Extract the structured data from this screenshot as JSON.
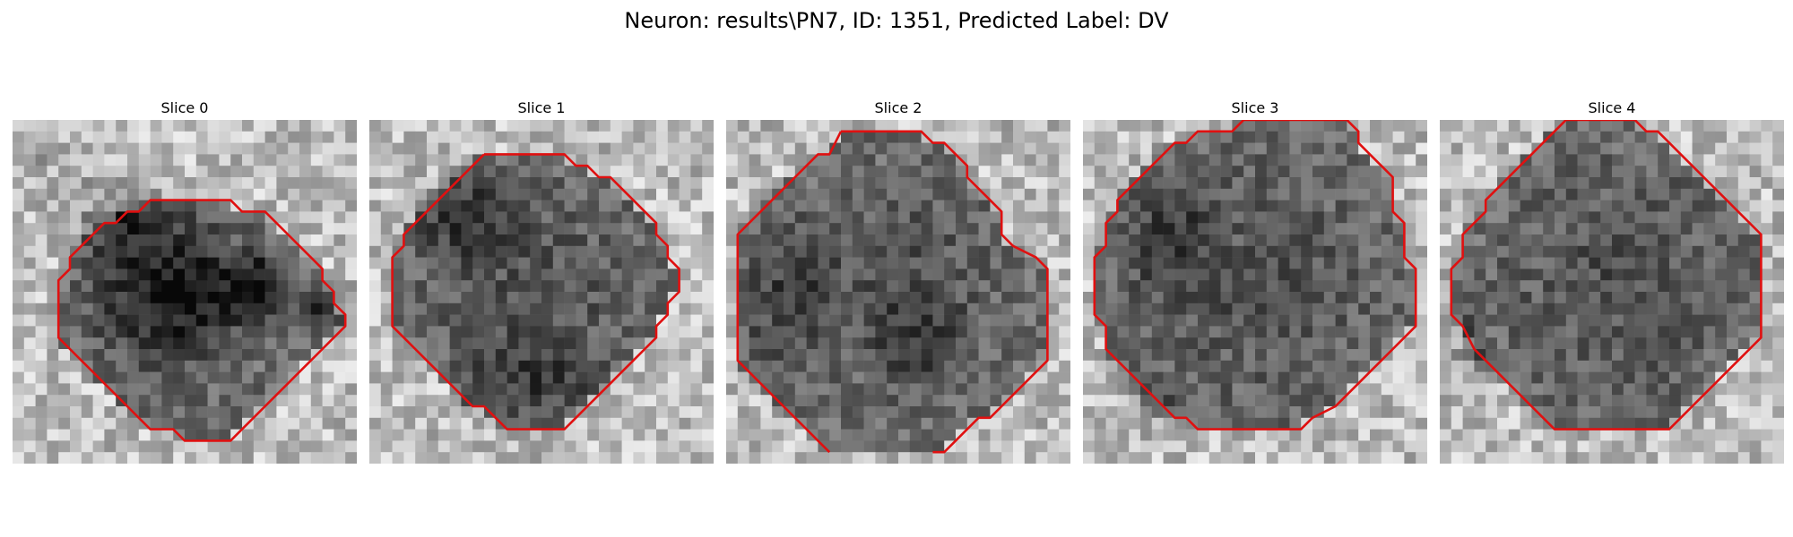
{
  "figure": {
    "title": "Neuron: results\\PN7, ID: 1351, Predicted Label: DV"
  },
  "colors": {
    "contour": "#e01010",
    "background": "#ffffff"
  },
  "slices": [
    {
      "title": "Slice 0",
      "contour": [
        [
          14,
          7
        ],
        [
          19,
          7
        ],
        [
          20,
          8
        ],
        [
          22,
          8
        ],
        [
          23,
          9
        ],
        [
          24,
          10
        ],
        [
          25,
          11
        ],
        [
          26,
          12
        ],
        [
          27,
          13
        ],
        [
          27,
          14
        ],
        [
          28,
          15
        ],
        [
          28,
          16
        ],
        [
          29,
          17
        ],
        [
          29,
          18
        ],
        [
          28,
          19
        ],
        [
          27,
          20
        ],
        [
          26,
          21
        ],
        [
          25,
          22
        ],
        [
          24,
          23
        ],
        [
          23,
          24
        ],
        [
          22,
          25
        ],
        [
          21,
          26
        ],
        [
          20,
          27
        ],
        [
          19,
          28
        ],
        [
          16,
          28
        ],
        [
          15,
          28
        ],
        [
          14,
          27
        ],
        [
          12,
          27
        ],
        [
          11,
          26
        ],
        [
          10,
          25
        ],
        [
          9,
          24
        ],
        [
          8,
          23
        ],
        [
          7,
          22
        ],
        [
          6,
          21
        ],
        [
          5,
          20
        ],
        [
          4,
          19
        ],
        [
          4,
          17
        ],
        [
          4,
          14
        ],
        [
          5,
          13
        ],
        [
          5,
          12
        ],
        [
          6,
          11
        ],
        [
          7,
          10
        ],
        [
          8,
          9
        ],
        [
          9,
          9
        ],
        [
          10,
          8
        ],
        [
          11,
          8
        ],
        [
          12,
          7
        ],
        [
          14,
          7
        ]
      ],
      "dark_spots": [
        [
          9,
          8,
          7,
          5,
          0.25
        ],
        [
          13,
          15,
          9,
          8,
          0.32
        ],
        [
          21,
          14,
          4,
          4,
          0.35
        ],
        [
          27,
          16,
          3,
          3,
          0.3
        ],
        [
          2,
          2,
          2,
          4,
          0.15
        ]
      ],
      "dark_center": [
        15,
        14,
        10,
        8
      ]
    },
    {
      "title": "Slice 1",
      "contour": [
        [
          10,
          3
        ],
        [
          17,
          3
        ],
        [
          18,
          4
        ],
        [
          19,
          4
        ],
        [
          20,
          5
        ],
        [
          21,
          5
        ],
        [
          22,
          6
        ],
        [
          23,
          7
        ],
        [
          24,
          8
        ],
        [
          25,
          9
        ],
        [
          25,
          10
        ],
        [
          26,
          11
        ],
        [
          26,
          12
        ],
        [
          27,
          13
        ],
        [
          27,
          15
        ],
        [
          26,
          16
        ],
        [
          26,
          17
        ],
        [
          25,
          18
        ],
        [
          25,
          19
        ],
        [
          24,
          20
        ],
        [
          23,
          21
        ],
        [
          22,
          22
        ],
        [
          21,
          23
        ],
        [
          20,
          24
        ],
        [
          19,
          25
        ],
        [
          18,
          26
        ],
        [
          17,
          27
        ],
        [
          12,
          27
        ],
        [
          11,
          26
        ],
        [
          10,
          25
        ],
        [
          9,
          25
        ],
        [
          8,
          24
        ],
        [
          7,
          23
        ],
        [
          6,
          22
        ],
        [
          5,
          21
        ],
        [
          4,
          20
        ],
        [
          3,
          19
        ],
        [
          2,
          18
        ],
        [
          2,
          16
        ],
        [
          2,
          12
        ],
        [
          3,
          11
        ],
        [
          3,
          10
        ],
        [
          4,
          9
        ],
        [
          5,
          8
        ],
        [
          6,
          7
        ],
        [
          7,
          6
        ],
        [
          8,
          5
        ],
        [
          9,
          4
        ],
        [
          10,
          3
        ]
      ],
      "dark_spots": [
        [
          14,
          22,
          8,
          5,
          0.18
        ],
        [
          8,
          8,
          6,
          6,
          0.25
        ]
      ],
      "dark_center": [
        14,
        15,
        12,
        12
      ]
    },
    {
      "title": "Slice 2",
      "contour": [
        [
          10,
          1
        ],
        [
          16,
          1
        ],
        [
          17,
          1
        ],
        [
          18,
          2
        ],
        [
          19,
          2
        ],
        [
          20,
          3
        ],
        [
          21,
          4
        ],
        [
          21,
          5
        ],
        [
          22,
          6
        ],
        [
          23,
          7
        ],
        [
          24,
          8
        ],
        [
          24,
          10
        ],
        [
          25,
          11
        ],
        [
          27,
          12
        ],
        [
          28,
          13
        ],
        [
          28,
          15
        ],
        [
          28,
          21
        ],
        [
          27,
          22
        ],
        [
          26,
          23
        ],
        [
          25,
          24
        ],
        [
          24,
          25
        ],
        [
          23,
          26
        ],
        [
          22,
          26
        ],
        [
          21,
          27
        ],
        [
          20,
          28
        ],
        [
          19,
          29
        ],
        [
          18,
          29
        ]
      ],
      "contour2": [
        [
          9,
          29
        ],
        [
          8,
          28
        ],
        [
          7,
          27
        ],
        [
          6,
          26
        ],
        [
          5,
          25
        ],
        [
          4,
          24
        ],
        [
          3,
          23
        ],
        [
          2,
          22
        ],
        [
          1,
          21
        ],
        [
          1,
          10
        ],
        [
          2,
          9
        ],
        [
          3,
          8
        ],
        [
          4,
          7
        ],
        [
          5,
          6
        ],
        [
          6,
          5
        ],
        [
          7,
          4
        ],
        [
          8,
          3
        ],
        [
          9,
          3
        ],
        [
          10,
          1
        ]
      ],
      "dark_spots": [
        [
          5,
          15,
          6,
          10,
          0.2
        ],
        [
          16,
          19,
          6,
          6,
          0.15
        ]
      ],
      "dark_center": [
        15,
        14,
        11,
        11
      ]
    },
    {
      "title": "Slice 3",
      "contour": [
        [
          14,
          0
        ],
        [
          23,
          0
        ],
        [
          24,
          1
        ],
        [
          24,
          2
        ],
        [
          25,
          3
        ],
        [
          26,
          4
        ],
        [
          27,
          5
        ],
        [
          27,
          8
        ],
        [
          28,
          9
        ],
        [
          28,
          12
        ],
        [
          29,
          13
        ],
        [
          29,
          18
        ],
        [
          28,
          19
        ],
        [
          27,
          20
        ],
        [
          26,
          21
        ],
        [
          25,
          22
        ],
        [
          24,
          23
        ],
        [
          23,
          24
        ],
        [
          22,
          25
        ],
        [
          20,
          26
        ],
        [
          19,
          27
        ],
        [
          10,
          27
        ],
        [
          9,
          26
        ],
        [
          8,
          26
        ],
        [
          7,
          25
        ],
        [
          6,
          24
        ],
        [
          5,
          23
        ],
        [
          4,
          22
        ],
        [
          3,
          21
        ],
        [
          2,
          20
        ],
        [
          2,
          18
        ],
        [
          1,
          17
        ],
        [
          1,
          12
        ],
        [
          2,
          11
        ],
        [
          2,
          9
        ],
        [
          3,
          8
        ],
        [
          3,
          7
        ],
        [
          4,
          6
        ],
        [
          5,
          5
        ],
        [
          6,
          4
        ],
        [
          7,
          3
        ],
        [
          8,
          2
        ],
        [
          9,
          2
        ],
        [
          10,
          1
        ],
        [
          13,
          1
        ],
        [
          14,
          0
        ]
      ],
      "dark_spots": [
        [
          7,
          9,
          6,
          8,
          0.2
        ],
        [
          5,
          24,
          3,
          4,
          0.25
        ]
      ],
      "dark_center": [
        15,
        14,
        13,
        13
      ]
    },
    {
      "title": "Slice 4",
      "contour": [
        [
          11,
          0
        ],
        [
          17,
          0
        ],
        [
          18,
          1
        ],
        [
          19,
          1
        ],
        [
          20,
          2
        ],
        [
          21,
          3
        ],
        [
          22,
          4
        ],
        [
          23,
          5
        ],
        [
          24,
          6
        ],
        [
          25,
          7
        ],
        [
          26,
          8
        ],
        [
          27,
          9
        ],
        [
          28,
          10
        ],
        [
          28,
          19
        ],
        [
          27,
          20
        ],
        [
          26,
          21
        ],
        [
          25,
          22
        ],
        [
          24,
          23
        ],
        [
          23,
          24
        ],
        [
          22,
          25
        ],
        [
          21,
          26
        ],
        [
          20,
          27
        ],
        [
          10,
          27
        ],
        [
          9,
          26
        ],
        [
          8,
          25
        ],
        [
          7,
          24
        ],
        [
          6,
          23
        ],
        [
          5,
          22
        ],
        [
          4,
          21
        ],
        [
          3,
          20
        ],
        [
          2,
          18
        ],
        [
          1,
          17
        ],
        [
          1,
          13
        ],
        [
          2,
          12
        ],
        [
          2,
          10
        ],
        [
          3,
          9
        ],
        [
          4,
          8
        ],
        [
          4,
          7
        ],
        [
          5,
          6
        ],
        [
          6,
          5
        ],
        [
          7,
          4
        ],
        [
          8,
          3
        ],
        [
          9,
          2
        ],
        [
          10,
          1
        ],
        [
          11,
          0
        ]
      ],
      "dark_spots": [
        [
          2,
          20,
          2,
          5,
          0.25
        ]
      ],
      "dark_center": [
        15,
        14,
        13,
        13
      ]
    }
  ]
}
